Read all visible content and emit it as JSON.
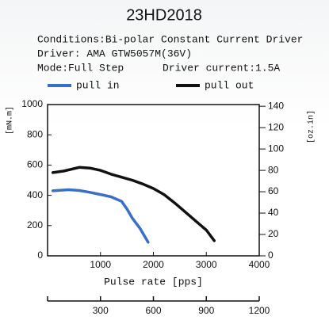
{
  "chart_data": {
    "type": "line",
    "title": "23HD2018",
    "notes": [
      "Conditions:Bi-polar Constant Current Driver",
      "Driver: AMA GTW5057M(36V)",
      "Mode:Full Step",
      "Driver current:1.5A"
    ],
    "xlabel": "Pulse rate [pps]",
    "ylabel": "[mN.m]",
    "y2label": "[oz.in]",
    "xlim": [
      0,
      4000
    ],
    "xticks": [
      1000,
      2000,
      3000,
      4000
    ],
    "ylim": [
      0,
      1000
    ],
    "yticks": [
      0,
      200,
      400,
      600,
      800,
      1000
    ],
    "y2lim": [
      0,
      141.6
    ],
    "y2ticks": [
      0,
      20,
      40,
      60,
      80,
      100,
      120,
      140
    ],
    "x2lim": [
      0,
      1200
    ],
    "x2ticks": [
      300,
      600,
      900,
      1200
    ],
    "series": [
      {
        "name": "pull in",
        "color": "#3a6fc8",
        "x": [
          100,
          400,
          600,
          800,
          1000,
          1200,
          1400,
          1500,
          1600,
          1750,
          1900
        ],
        "values": [
          430,
          437,
          432,
          420,
          405,
          390,
          360,
          310,
          250,
          180,
          90
        ]
      },
      {
        "name": "pull out",
        "color": "#111111",
        "x": [
          100,
          300,
          600,
          800,
          1000,
          1200,
          1400,
          1600,
          1800,
          2000,
          2200,
          2400,
          2600,
          2800,
          3000,
          3150
        ],
        "values": [
          550,
          560,
          585,
          580,
          565,
          540,
          520,
          500,
          475,
          445,
          405,
          350,
          290,
          230,
          170,
          100
        ]
      }
    ]
  }
}
